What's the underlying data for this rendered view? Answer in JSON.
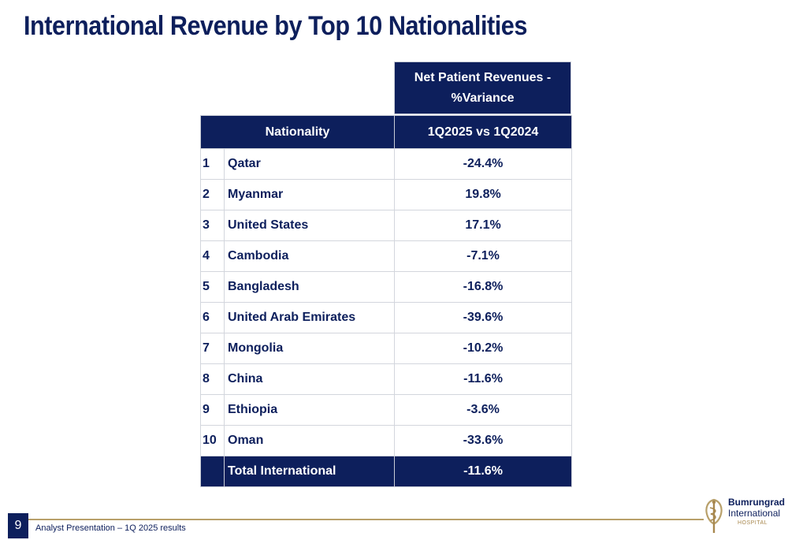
{
  "title": "International Revenue by Top 10 Nationalities",
  "table": {
    "group_header": "Net Patient Revenues - %Variance",
    "col_nationality": "Nationality",
    "col_period": "1Q2025 vs 1Q2024",
    "rows": [
      {
        "rank": "1",
        "name": "Qatar",
        "value": "-24.4%"
      },
      {
        "rank": "2",
        "name": "Myanmar",
        "value": "19.8%"
      },
      {
        "rank": "3",
        "name": "United States",
        "value": "17.1%"
      },
      {
        "rank": "4",
        "name": "Cambodia",
        "value": "-7.1%"
      },
      {
        "rank": "5",
        "name": "Bangladesh",
        "value": "-16.8%"
      },
      {
        "rank": "6",
        "name": "United Arab Emirates",
        "value": "-39.6%"
      },
      {
        "rank": "7",
        "name": "Mongolia",
        "value": "-10.2%"
      },
      {
        "rank": "8",
        "name": "China",
        "value": "-11.6%"
      },
      {
        "rank": "9",
        "name": "Ethiopia",
        "value": "-3.6%"
      },
      {
        "rank": "10",
        "name": "Oman",
        "value": "-33.6%"
      }
    ],
    "total": {
      "label": "Total International",
      "value": "-11.6%"
    }
  },
  "footer": {
    "page_number": "9",
    "text": "Analyst Presentation – 1Q 2025 results"
  },
  "logo": {
    "line1": "Bumrungrad",
    "line2": "International",
    "line3": "HOSPITAL",
    "icon": "caduceus-emblem-icon"
  },
  "colors": {
    "navy": "#0d1f5c",
    "gold": "#b8a06a",
    "border": "#d3d6dd"
  }
}
